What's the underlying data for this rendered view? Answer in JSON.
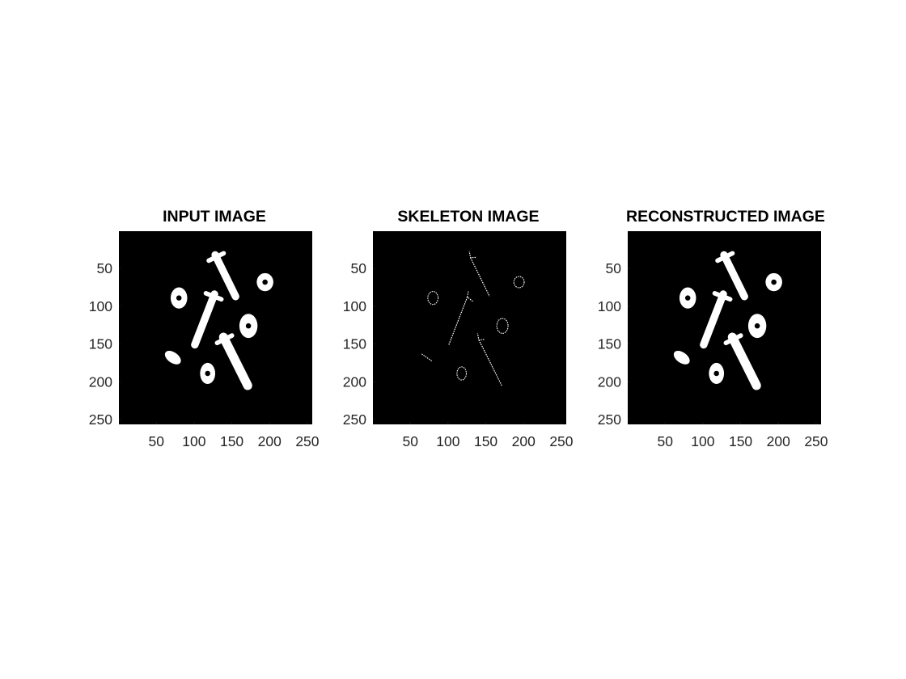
{
  "figure": {
    "background": "#ffffff"
  },
  "chart_data": [
    {
      "type": "image",
      "title": "INPUT IMAGE",
      "image_size": [
        256,
        256
      ],
      "xlim": [
        1,
        256
      ],
      "ylim": [
        1,
        256
      ],
      "y_reversed": true,
      "x_ticks": [
        50,
        100,
        150,
        200,
        250
      ],
      "y_ticks": [
        50,
        100,
        150,
        200,
        250
      ],
      "x_tick_labels": [
        "50",
        "100",
        "150",
        "200",
        "250"
      ],
      "y_tick_labels": [
        "50",
        "100",
        "150",
        "200",
        "250"
      ],
      "rendering": "solid",
      "foreground": "#ffffff",
      "background": "#000000"
    },
    {
      "type": "image",
      "title": "SKELETON IMAGE",
      "image_size": [
        256,
        256
      ],
      "xlim": [
        1,
        256
      ],
      "ylim": [
        1,
        256
      ],
      "y_reversed": true,
      "x_ticks": [
        50,
        100,
        150,
        200,
        250
      ],
      "y_ticks": [
        50,
        100,
        150,
        200,
        250
      ],
      "x_tick_labels": [
        "50",
        "100",
        "150",
        "200",
        "250"
      ],
      "y_tick_labels": [
        "50",
        "100",
        "150",
        "200",
        "250"
      ],
      "rendering": "skeleton",
      "foreground": "#ffffff",
      "background": "#000000"
    },
    {
      "type": "image",
      "title": "RECONSTRUCTED IMAGE",
      "image_size": [
        256,
        256
      ],
      "xlim": [
        1,
        256
      ],
      "ylim": [
        1,
        256
      ],
      "y_reversed": true,
      "x_ticks": [
        50,
        100,
        150,
        200,
        250
      ],
      "y_ticks": [
        50,
        100,
        150,
        200,
        250
      ],
      "x_tick_labels": [
        "50",
        "100",
        "150",
        "200",
        "250"
      ],
      "y_tick_labels": [
        "50",
        "100",
        "150",
        "200",
        "250"
      ],
      "rendering": "solid",
      "foreground": "#ffffff",
      "background": "#000000"
    }
  ],
  "objects": {
    "bolts": [
      {
        "name": "bolt-top",
        "x1": 128,
        "y1": 32,
        "x2": 155,
        "y2": 87,
        "half_width": 5,
        "head_half_width": 11
      },
      {
        "name": "bolt-middle",
        "x1": 127,
        "y1": 84,
        "x2": 101,
        "y2": 151,
        "half_width": 5,
        "head_half_width": 11
      },
      {
        "name": "bolt-bottom",
        "x1": 139,
        "y1": 141,
        "x2": 171,
        "y2": 205,
        "half_width": 6,
        "head_half_width": 11
      }
    ],
    "rings": [
      {
        "name": "ring-left",
        "cx": 80,
        "cy": 89,
        "rx": 11,
        "ry": 14,
        "hole": 3.5
      },
      {
        "name": "ring-top-right",
        "cx": 194,
        "cy": 68,
        "rx": 11,
        "ry": 12,
        "hole": 3.5
      },
      {
        "name": "ring-right",
        "cx": 172,
        "cy": 126,
        "rx": 12,
        "ry": 16,
        "hole": 3.5
      },
      {
        "name": "ring-bottom",
        "cx": 118,
        "cy": 189,
        "rx": 10,
        "ry": 14,
        "hole": 3.5
      }
    ],
    "blobs": [
      {
        "name": "blob-left",
        "cx": 72,
        "cy": 168,
        "rx": 12,
        "ry": 7,
        "angle": 35
      }
    ]
  }
}
